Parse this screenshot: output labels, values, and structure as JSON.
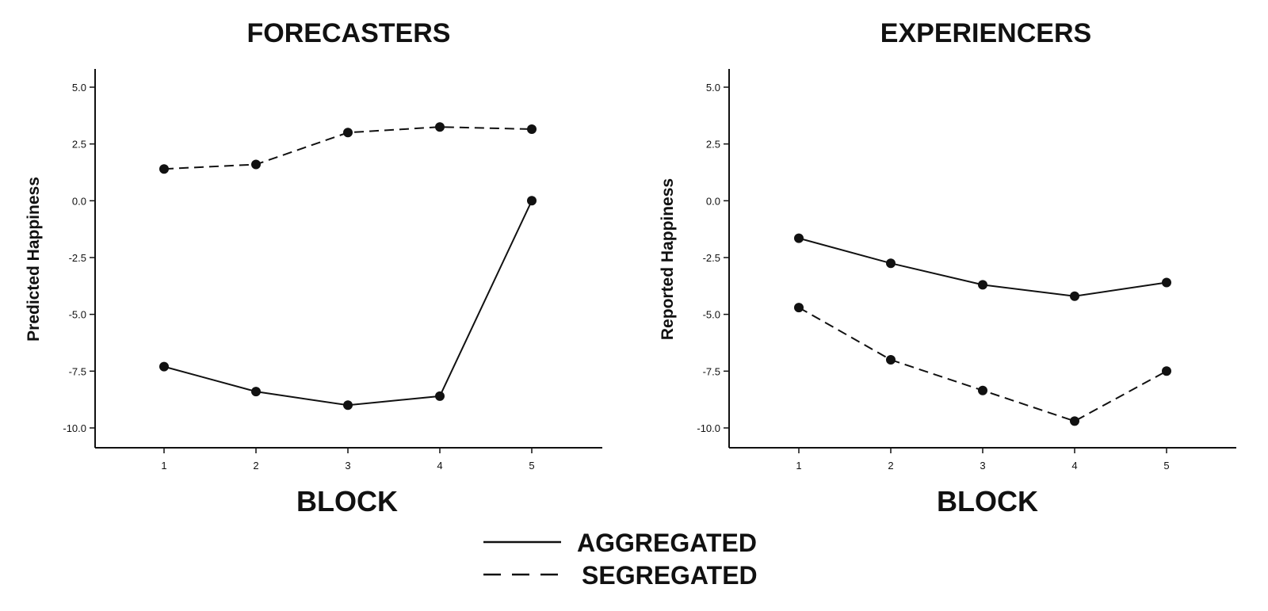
{
  "chart_data": [
    {
      "type": "line",
      "title": "FORECASTERS",
      "xlabel": "BLOCK",
      "ylabel": "Predicted Happiness",
      "x": [
        1,
        2,
        3,
        4,
        5
      ],
      "ylim": [
        -10.8,
        5.8
      ],
      "yticks": [
        "5.0",
        "2.5",
        "0.0",
        "-2.5",
        "-5.0",
        "-7.5",
        "-10.0"
      ],
      "xticks": [
        "1",
        "2",
        "3",
        "4",
        "5"
      ],
      "grid": false,
      "series": [
        {
          "name": "AGGREGATED",
          "style": "solid",
          "values": [
            -7.3,
            -8.4,
            -9.0,
            -8.6,
            0.0
          ]
        },
        {
          "name": "SEGREGATED",
          "style": "dashed",
          "values": [
            1.4,
            1.6,
            3.0,
            3.25,
            3.15
          ]
        }
      ]
    },
    {
      "type": "line",
      "title": "EXPERIENCERS",
      "xlabel": "BLOCK",
      "ylabel": "Reported Happiness",
      "x": [
        1,
        2,
        3,
        4,
        5
      ],
      "ylim": [
        -10.8,
        5.8
      ],
      "yticks": [
        "5.0",
        "2.5",
        "0.0",
        "-2.5",
        "-5.0",
        "-7.5",
        "-10.0"
      ],
      "xticks": [
        "1",
        "2",
        "3",
        "4",
        "5"
      ],
      "grid": false,
      "series": [
        {
          "name": "AGGREGATED",
          "style": "solid",
          "values": [
            -1.65,
            -2.75,
            -3.7,
            -4.2,
            -3.6
          ]
        },
        {
          "name": "SEGREGATED",
          "style": "dashed",
          "values": [
            -4.7,
            -7.0,
            -8.35,
            -9.7,
            -7.5
          ]
        }
      ]
    }
  ],
  "legend": {
    "placement": "bottom-center",
    "items": [
      {
        "label": "AGGREGATED",
        "style": "solid"
      },
      {
        "label": "SEGREGATED",
        "style": "dashed"
      }
    ]
  }
}
